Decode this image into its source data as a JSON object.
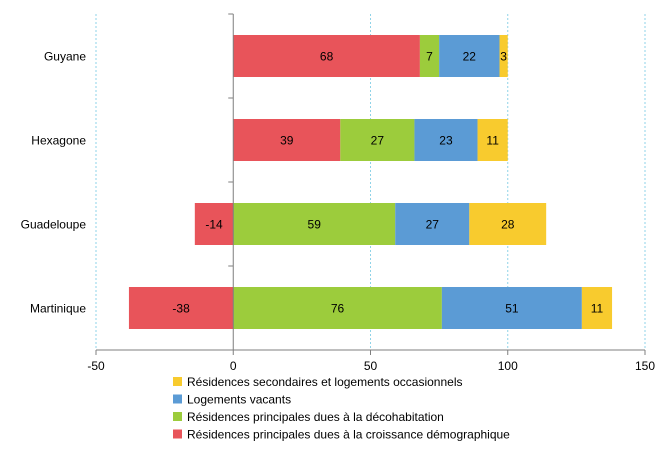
{
  "chart_data": {
    "type": "bar",
    "orientation": "horizontal",
    "stacked": true,
    "categories": [
      "Guyane",
      "Hexagone",
      "Guadeloupe",
      "Martinique"
    ],
    "series": [
      {
        "name": "Résidences principales dues à la croissance démographique",
        "color": "#e8545a",
        "values": [
          68,
          39,
          -14,
          -38
        ]
      },
      {
        "name": "Résidences principales dues à la décohabitation",
        "color": "#9ccc3c",
        "values": [
          7,
          27,
          59,
          76
        ]
      },
      {
        "name": "Logements vacants",
        "color": "#5b9bd5",
        "values": [
          22,
          23,
          27,
          51
        ]
      },
      {
        "name": "Résidences secondaires et logements occasionnels",
        "color": "#f8cb2e",
        "values": [
          3,
          11,
          28,
          11
        ]
      }
    ],
    "xlim": [
      -50,
      150
    ],
    "xticks": [
      "-50",
      "0",
      "50",
      "100",
      "150"
    ],
    "grid": "vertical dashed",
    "legend_position": "bottom",
    "legend_order": [
      3,
      2,
      1,
      0
    ]
  }
}
